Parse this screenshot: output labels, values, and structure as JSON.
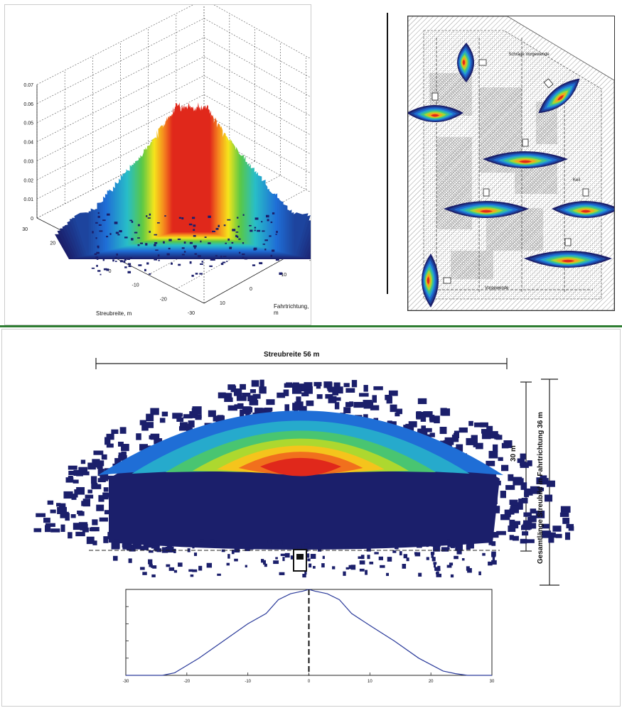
{
  "colors": {
    "frame": "#333333",
    "divider": "#2e7d32",
    "low": "#1b1f6b",
    "mid": "#1f8fd6",
    "high": "#f5e51b",
    "peak": "#e0281b"
  },
  "surface_plot": {
    "xlabel": "Streubreite, m",
    "ylabel": "Fahrtrichtung, m"
  },
  "field_map": {
    "labels": [
      "Schräge Vorgewende",
      "Keil",
      "Vorgewende"
    ]
  },
  "spread_pattern": {
    "width_label": "Streubreite 56 m",
    "depth_label": "30 m",
    "total_label": "Gesamtlänge Streubild in Fahrtrichtung 36 m"
  },
  "chart_data": [
    {
      "type": "surface",
      "xlabel": "Streubreite, m",
      "ylabel": "Fahrtrichtung, m",
      "zticks": [
        "0",
        "0.01",
        "0.02",
        "0.03",
        "0.04",
        "0.05",
        "0.06",
        "0.07"
      ],
      "xticks": [
        "30",
        "20",
        "10",
        "0",
        "-10",
        "-20",
        "-30"
      ],
      "yticks": [
        "-40",
        "-30",
        "-20",
        "-10",
        "0",
        "10"
      ],
      "zlim": [
        0,
        0.07
      ],
      "peak": 0.066
    },
    {
      "type": "line",
      "xticks": [
        "-30",
        "-20",
        "-10",
        "0",
        "10",
        "20",
        "30"
      ],
      "xlim": [
        -30,
        30
      ],
      "ylim": [
        0,
        100
      ],
      "x": [
        -30,
        -24,
        -22,
        -18,
        -14,
        -10,
        -7,
        -5,
        -3,
        -1,
        0,
        1,
        3,
        5,
        7,
        10,
        14,
        18,
        22,
        24,
        26,
        30
      ],
      "y": [
        0,
        0,
        3,
        20,
        40,
        60,
        72,
        88,
        95,
        98,
        100,
        98,
        95,
        88,
        72,
        58,
        40,
        20,
        5,
        2,
        0,
        0
      ]
    }
  ]
}
